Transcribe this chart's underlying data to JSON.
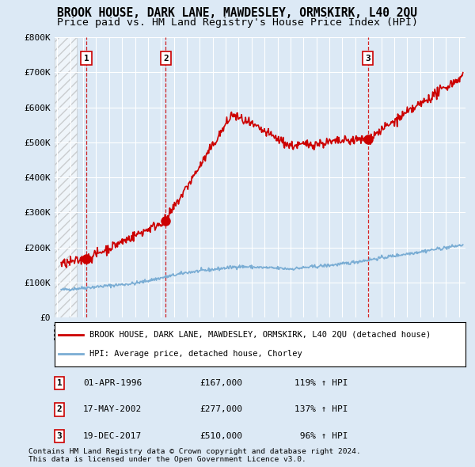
{
  "title": "BROOK HOUSE, DARK LANE, MAWDESLEY, ORMSKIRK, L40 2QU",
  "subtitle": "Price paid vs. HM Land Registry's House Price Index (HPI)",
  "title_fontsize": 10.5,
  "subtitle_fontsize": 9.5,
  "ylim": [
    0,
    800000
  ],
  "yticks": [
    0,
    100000,
    200000,
    300000,
    400000,
    500000,
    600000,
    700000,
    800000
  ],
  "ytick_labels": [
    "£0",
    "£100K",
    "£200K",
    "£300K",
    "£400K",
    "£500K",
    "£600K",
    "£700K",
    "£800K"
  ],
  "xlim_start": 1993.8,
  "xlim_end": 2025.5,
  "background_color": "#dce9f5",
  "hatch_region_end": 1995.5,
  "sales": [
    {
      "year": 1996.25,
      "price": 167000,
      "label": "1"
    },
    {
      "year": 2002.38,
      "price": 277000,
      "label": "2"
    },
    {
      "year": 2017.97,
      "price": 510000,
      "label": "3"
    }
  ],
  "red_line_color": "#cc0000",
  "blue_line_color": "#7aadd4",
  "marker_color": "#cc0000",
  "sale_marker_size": 8,
  "dashed_line_color": "#cc0000",
  "legend_red_label": "BROOK HOUSE, DARK LANE, MAWDESLEY, ORMSKIRK, L40 2QU (detached house)",
  "legend_blue_label": "HPI: Average price, detached house, Chorley",
  "footer1": "Contains HM Land Registry data © Crown copyright and database right 2024.",
  "footer2": "This data is licensed under the Open Government Licence v3.0.",
  "table_rows": [
    [
      "1",
      "01-APR-1996",
      "£167,000",
      "119% ↑ HPI"
    ],
    [
      "2",
      "17-MAY-2002",
      "£277,000",
      "137% ↑ HPI"
    ],
    [
      "3",
      "19-DEC-2017",
      "£510,000",
      " 96% ↑ HPI"
    ]
  ]
}
